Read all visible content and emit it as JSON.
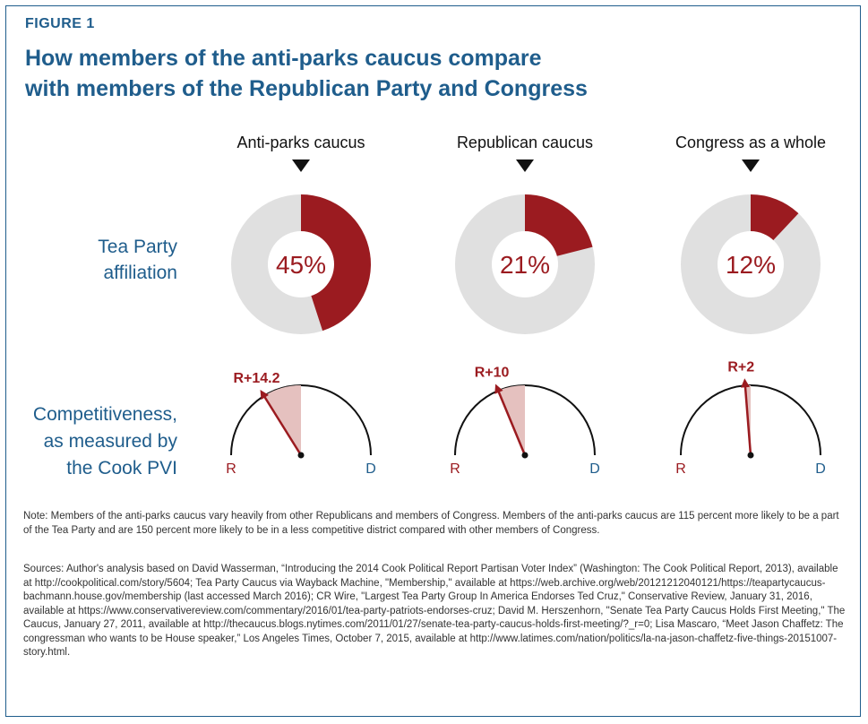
{
  "figure": {
    "label": "FIGURE 1",
    "title_line1": "How members of the anti-parks caucus compare",
    "title_line2": "with members of the Republican Party and Congress"
  },
  "row_labels": {
    "tea_party": [
      "Tea Party",
      "affiliation"
    ],
    "competitiveness": [
      "Competitiveness,",
      "as measured by",
      "the Cook PVI"
    ]
  },
  "gauge_end_labels": {
    "left": "R",
    "right": "D"
  },
  "colors": {
    "accent": "#9b1b20",
    "blue": "#1f5d8c",
    "gray": "#e0e0e0",
    "light": "#e5c1bf"
  },
  "chart_data": {
    "type": "pie",
    "groups": [
      {
        "name": "Anti-parks caucus",
        "tea_party_pct": 45,
        "tea_party_label": "45%",
        "pvi": 14.2,
        "pvi_label": "R+14.2"
      },
      {
        "name": "Republican caucus",
        "tea_party_pct": 21,
        "tea_party_label": "21%",
        "pvi": 10,
        "pvi_label": "R+10"
      },
      {
        "name": "Congress as a whole",
        "tea_party_pct": 12,
        "tea_party_label": "12%",
        "pvi": 2,
        "pvi_label": "R+2"
      }
    ]
  },
  "note": "Note: Members of the anti-parks caucus vary heavily from other Republicans and members of Congress. Members of the anti-parks caucus are 115 percent more likely to be a part of the Tea Party and are 150 percent more likely to be in a less competitive district compared with other members of Congress.",
  "sources": "Sources: Author's analysis based on David Wasserman, “Introducing the 2014 Cook Political Report Partisan Voter Index” (Washington: The Cook Political Report, 2013), available at http://cookpolitical.com/story/5604; Tea Party Caucus via Wayback Machine, \"Membership,\" available at https://web.archive.org/web/20121212040121/https://teapartycaucus-bachmann.house.gov/membership (last accessed March 2016); CR Wire, \"Largest Tea Party Group In America Endorses Ted Cruz,\" Conservative Review, January 31, 2016, available at https://www.conservativereview.com/commentary/2016/01/tea-party-patriots-endorses-cruz; David M. Herszenhorn, \"Senate Tea Party Caucus Holds First Meeting,\" The Caucus, January 27, 2011, available at http://thecaucus.blogs.nytimes.com/2011/01/27/senate-tea-party-caucus-holds-first-meeting/?_r=0; Lisa Mascaro, “Meet Jason Chaffetz: The congressman who wants to be House speaker,” Los Angeles Times, October 7, 2015, available at http://www.latimes.com/nation/politics/la-na-jason-chaffetz-five-things-20151007-story.html."
}
